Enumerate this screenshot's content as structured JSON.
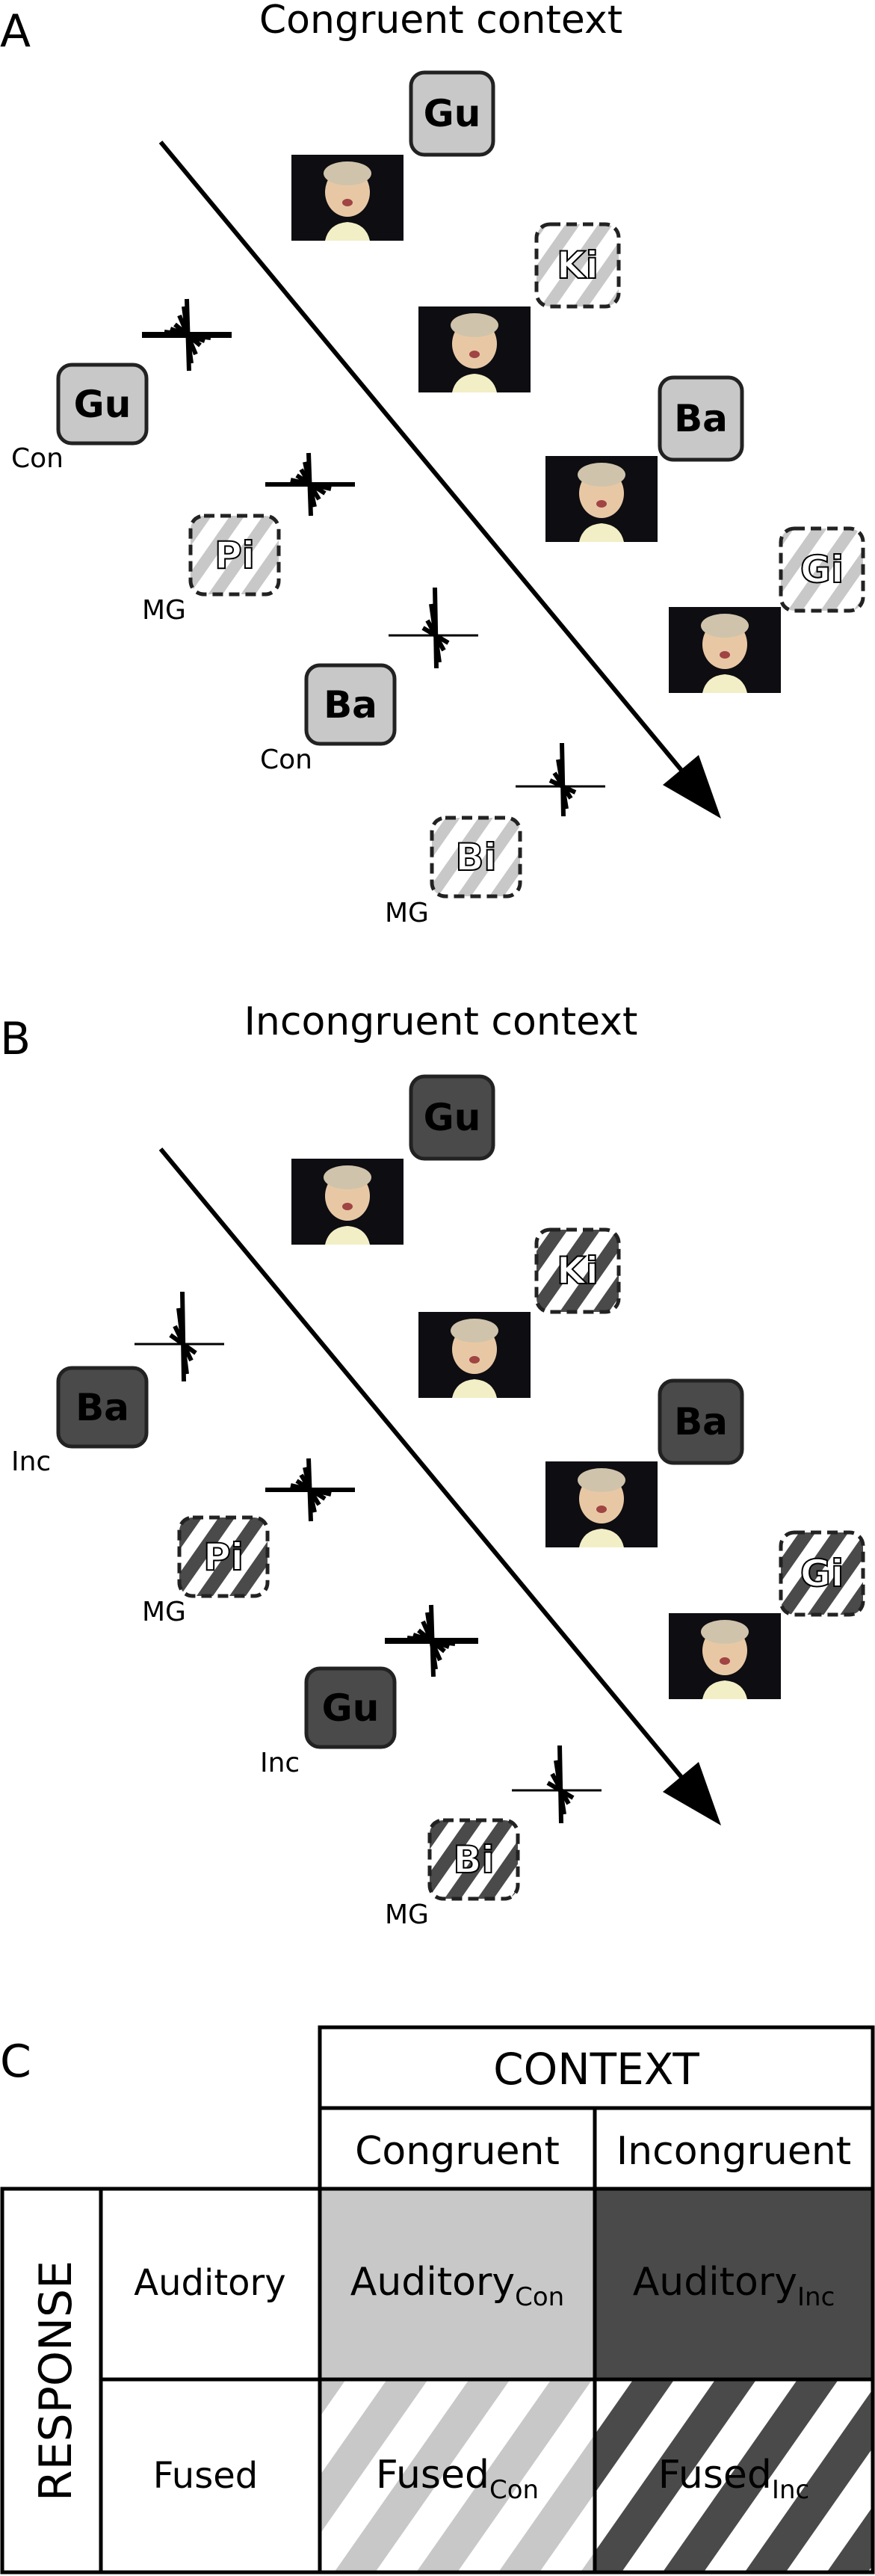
{
  "panel_a": {
    "letter": "A",
    "title": "Congruent context",
    "video_syllables": [
      "Gu",
      "Ki",
      "Ba",
      "Gi"
    ],
    "auditory_syllables": [
      "Gu",
      "Pi",
      "Ba",
      "Bi"
    ],
    "auditory_labels": [
      "Con",
      "MG",
      "Con",
      "MG"
    ]
  },
  "panel_b": {
    "letter": "B",
    "title": "Incongruent context",
    "video_syllables": [
      "Gu",
      "Ki",
      "Ba",
      "Gi"
    ],
    "auditory_syllables": [
      "Ba",
      "Pi",
      "Gu",
      "Bi"
    ],
    "auditory_labels": [
      "Inc",
      "MG",
      "Inc",
      "MG"
    ]
  },
  "panel_c": {
    "letter": "C",
    "context_header": "CONTEXT",
    "response_header": "RESPONSE",
    "columns": [
      "Congruent",
      "Incongruent"
    ],
    "rows": [
      "Auditory",
      "Fused"
    ],
    "cells": {
      "auditory_con": {
        "base": "Auditory",
        "sub": "Con"
      },
      "auditory_inc": {
        "base": "Auditory",
        "sub": "Inc"
      },
      "fused_con": {
        "base": "Fused",
        "sub": "Con"
      },
      "fused_inc": {
        "base": "Fused",
        "sub": "Inc"
      }
    }
  },
  "colors": {
    "congruent": "#c8c8c8",
    "incongruent": "#4a4a4a",
    "video_background": "#0d0d12"
  }
}
